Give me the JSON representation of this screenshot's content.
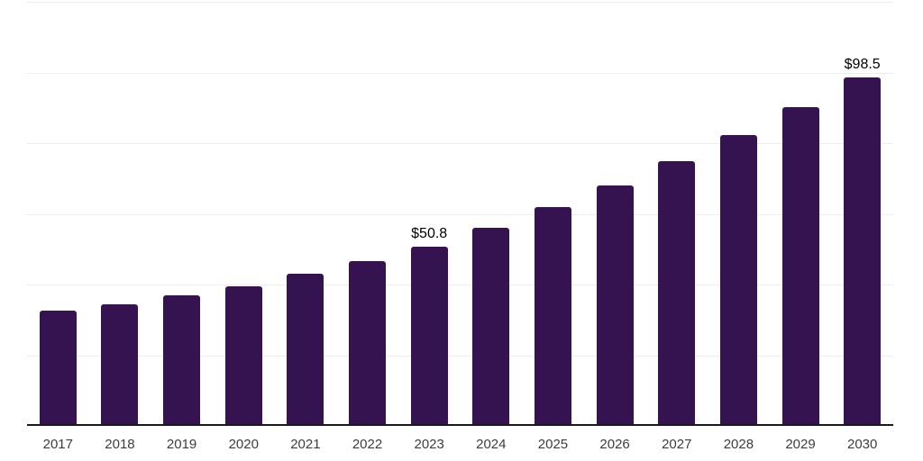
{
  "chart_data": {
    "type": "bar",
    "title": "",
    "xlabel": "",
    "ylabel": "",
    "categories": [
      "2017",
      "2018",
      "2019",
      "2020",
      "2021",
      "2022",
      "2023",
      "2024",
      "2025",
      "2026",
      "2027",
      "2028",
      "2029",
      "2030"
    ],
    "values": [
      32.7,
      34.5,
      36.9,
      39.4,
      43.0,
      46.5,
      50.8,
      56.0,
      62.0,
      68.0,
      74.9,
      82.3,
      90.2,
      98.5
    ],
    "data_labels": [
      {
        "category": "2023",
        "text": "$50.8"
      },
      {
        "category": "2030",
        "text": "$98.5"
      }
    ],
    "ylim": [
      0,
      120
    ],
    "grid": true,
    "gridline_interval": 20,
    "legend_visible": false,
    "y_axis_labels_visible": false
  },
  "colors": {
    "background": "#ffffff",
    "bar": "#351250",
    "gridline": "#ededed",
    "axis_line": "#1a1a1a",
    "tick_label": "#3d3d3d",
    "data_label": "#000000"
  }
}
